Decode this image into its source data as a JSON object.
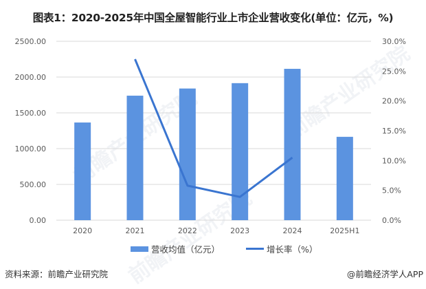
{
  "title": "图表1：2020-2025年中国全屋智能行业上市企业营收变化(单位：亿元，%)",
  "chart_data": {
    "type": "bar+line",
    "title": "图表1：2020-2025年中国全屋智能行业上市企业营收变化(单位：亿元，%)",
    "categories": [
      "2020",
      "2021",
      "2022",
      "2023",
      "2024",
      "2025H1"
    ],
    "series": [
      {
        "name": "营收均值（亿元）",
        "type": "bar",
        "axis": "left",
        "color": "#5b93e0",
        "values": [
          1365,
          1740,
          1840,
          1915,
          2115,
          1165
        ]
      },
      {
        "name": "增长率（%）",
        "type": "line",
        "axis": "right",
        "color": "#3a75d0",
        "values": [
          null,
          27.0,
          5.8,
          3.9,
          10.5,
          null
        ]
      }
    ],
    "y_left": {
      "ticks": [
        "0.00",
        "500.00",
        "1000.00",
        "1500.00",
        "2000.00",
        "2500.00"
      ],
      "ylim": [
        0,
        2500
      ]
    },
    "y_right": {
      "ticks": [
        "0.0%",
        "5.0%",
        "10.0%",
        "15.0%",
        "20.0%",
        "25.0%",
        "30.0%"
      ],
      "ylim": [
        0,
        30
      ]
    },
    "grid": true,
    "legend_position": "bottom"
  },
  "legend": {
    "bar_label": "营收均值（亿元）",
    "line_label": "增长率（%）"
  },
  "footer": {
    "source": "资料来源：前瞻产业研究院",
    "credit": "@前瞻经济学人APP"
  },
  "watermark": "前瞻产业研究院"
}
